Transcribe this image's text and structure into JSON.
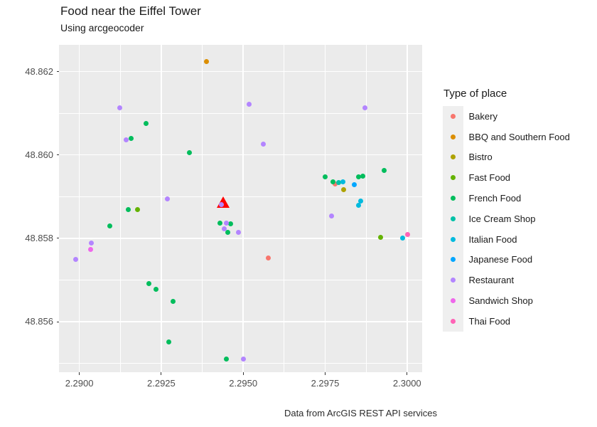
{
  "chart_data": {
    "type": "scatter",
    "title": "Food near the Eiffel Tower",
    "subtitle": "Using arcgeocoder",
    "caption": "Data from ArcGIS REST API services",
    "legend_title": "Type of place",
    "legend_position": "right",
    "grid": true,
    "panel_bg": "#EBEBEB",
    "xlabel": "",
    "ylabel": "",
    "xlim": [
      2.28938,
      2.30046
    ],
    "ylim": [
      48.85479,
      48.86264
    ],
    "x_ticks": {
      "values": [
        2.29,
        2.2925,
        2.295,
        2.2975,
        2.3
      ],
      "labels": [
        "2.2900",
        "2.2925",
        "2.2950",
        "2.2975",
        "2.3000"
      ]
    },
    "x_minor": [
      2.29125,
      2.29375,
      2.29625,
      2.29875
    ],
    "y_ticks": {
      "values": [
        48.862,
        48.86,
        48.858,
        48.856
      ],
      "labels": [
        "48.862",
        "48.860",
        "48.858",
        "48.856"
      ]
    },
    "y_minor": [
      48.861,
      48.859,
      48.857,
      48.855
    ],
    "series": [
      {
        "name": "Bakery",
        "color": "#F8766D",
        "points": [
          [
            2.2978,
            48.85931
          ],
          [
            2.29576,
            48.85753
          ]
        ]
      },
      {
        "name": "BBQ and Southern Food",
        "color": "#DB8E00",
        "points": [
          [
            2.29389,
            48.86224
          ]
        ]
      },
      {
        "name": "Bistro",
        "color": "#AEA200",
        "points": [
          [
            2.29806,
            48.85917
          ]
        ]
      },
      {
        "name": "Fast Food",
        "color": "#64B200",
        "points": [
          [
            2.29178,
            48.85869
          ],
          [
            2.2992,
            48.85802
          ]
        ]
      },
      {
        "name": "French Food",
        "color": "#00BD5C",
        "points": [
          [
            2.29204,
            48.86076
          ],
          [
            2.29157,
            48.86039
          ],
          [
            2.29336,
            48.86006
          ],
          [
            2.2993,
            48.85962
          ],
          [
            2.29749,
            48.85948
          ],
          [
            2.29852,
            48.85948
          ],
          [
            2.29866,
            48.8595
          ],
          [
            2.29773,
            48.85936
          ],
          [
            2.29149,
            48.85869
          ],
          [
            2.29094,
            48.8583
          ],
          [
            2.2943,
            48.85837
          ],
          [
            2.29461,
            48.85834
          ],
          [
            2.29454,
            48.85814
          ],
          [
            2.29213,
            48.85692
          ],
          [
            2.29235,
            48.85677
          ],
          [
            2.29286,
            48.85649
          ],
          [
            2.29274,
            48.85551
          ],
          [
            2.29448,
            48.85511
          ]
        ]
      },
      {
        "name": "Ice Cream Shop",
        "color": "#00C1A7",
        "points": [
          [
            2.29792,
            48.85934
          ]
        ]
      },
      {
        "name": "Italian Food",
        "color": "#00BADE",
        "points": [
          [
            2.29805,
            48.85935
          ],
          [
            2.29852,
            48.85879
          ],
          [
            2.29858,
            48.85889
          ],
          [
            2.29986,
            48.858
          ]
        ]
      },
      {
        "name": "Japanese Food",
        "color": "#00A6FF",
        "points": [
          [
            2.2984,
            48.85929
          ]
        ]
      },
      {
        "name": "Restaurant",
        "color": "#B385FF",
        "points": [
          [
            2.29123,
            48.86113
          ],
          [
            2.29517,
            48.86122
          ],
          [
            2.29871,
            48.86113
          ],
          [
            2.29143,
            48.86037
          ],
          [
            2.29561,
            48.86026
          ],
          [
            2.29268,
            48.85894
          ],
          [
            2.29433,
            48.85881
          ],
          [
            2.29448,
            48.85836
          ],
          [
            2.29442,
            48.85823
          ],
          [
            2.29486,
            48.85815
          ],
          [
            2.2977,
            48.85854
          ],
          [
            2.29037,
            48.85788
          ],
          [
            2.28989,
            48.85749
          ],
          [
            2.295,
            48.8551
          ]
        ]
      },
      {
        "name": "Sandwich Shop",
        "color": "#EF67EB",
        "points": [
          [
            2.29035,
            48.85773
          ]
        ]
      },
      {
        "name": "Thai Food",
        "color": "#FF63B6",
        "points": [
          [
            2.30001,
            48.85809
          ]
        ]
      }
    ],
    "annotation": {
      "name": "Eiffel Tower location marker",
      "shape": "filled-triangle",
      "color": "#FF0000",
      "point": [
        2.29438,
        48.85886
      ]
    }
  }
}
